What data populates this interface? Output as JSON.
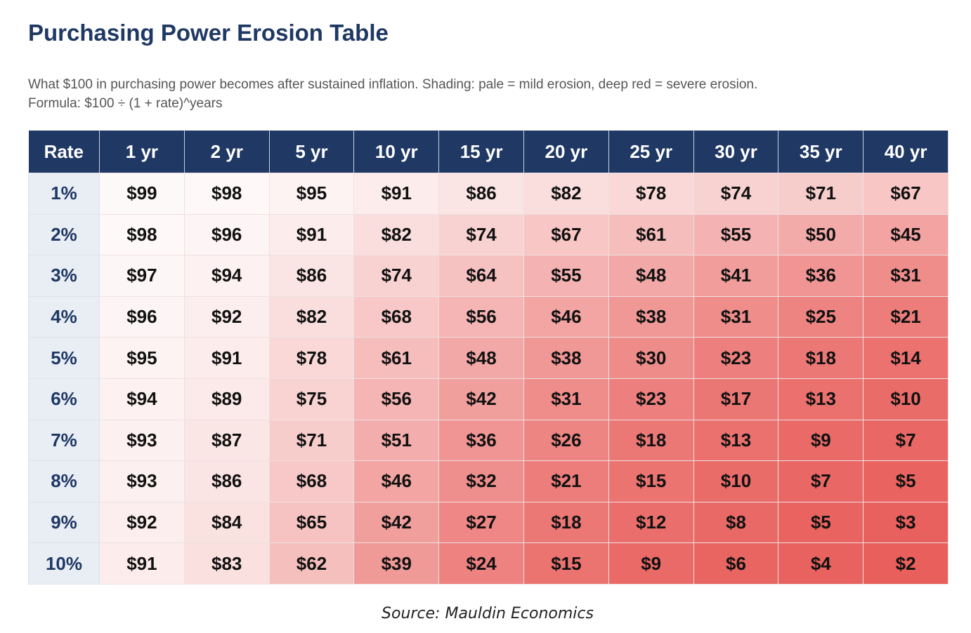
{
  "header": {
    "title": "Purchasing Power Erosion Table",
    "subtitle": [
      "What $100 in purchasing power becomes after sustained inflation. Shading: pale = mild erosion, deep red = severe erosion.",
      "Formula: $100 ÷ (1 + rate)^years"
    ]
  },
  "table": {
    "columns": [
      "Rate",
      "1 yr",
      "2 yr",
      "5 yr",
      "10 yr",
      "15 yr",
      "20 yr",
      "25 yr",
      "30 yr",
      "35 yr",
      "40 yr"
    ],
    "rows": [
      [
        "1%",
        "$99",
        "$98",
        "$95",
        "$91",
        "$86",
        "$82",
        "$78",
        "$74",
        "$71",
        "$67"
      ],
      [
        "2%",
        "$98",
        "$96",
        "$91",
        "$82",
        "$74",
        "$67",
        "$61",
        "$55",
        "$50",
        "$45"
      ],
      [
        "3%",
        "$97",
        "$94",
        "$86",
        "$74",
        "$64",
        "$55",
        "$48",
        "$41",
        "$36",
        "$31"
      ],
      [
        "4%",
        "$96",
        "$92",
        "$82",
        "$68",
        "$56",
        "$46",
        "$38",
        "$31",
        "$25",
        "$21"
      ],
      [
        "5%",
        "$95",
        "$91",
        "$78",
        "$61",
        "$48",
        "$38",
        "$30",
        "$23",
        "$18",
        "$14"
      ],
      [
        "6%",
        "$94",
        "$89",
        "$75",
        "$56",
        "$42",
        "$31",
        "$23",
        "$17",
        "$13",
        "$10"
      ],
      [
        "7%",
        "$93",
        "$87",
        "$71",
        "$51",
        "$36",
        "$26",
        "$18",
        "$13",
        "$9",
        "$7"
      ],
      [
        "8%",
        "$93",
        "$86",
        "$68",
        "$46",
        "$32",
        "$21",
        "$15",
        "$10",
        "$7",
        "$5"
      ],
      [
        "9%",
        "$92",
        "$84",
        "$65",
        "$42",
        "$27",
        "$18",
        "$12",
        "$8",
        "$5",
        "$3"
      ],
      [
        "10%",
        "$91",
        "$83",
        "$62",
        "$39",
        "$24",
        "$15",
        "$9",
        "$6",
        "$4",
        "$2"
      ]
    ]
  },
  "source": "Source: Mauldin Economics"
}
